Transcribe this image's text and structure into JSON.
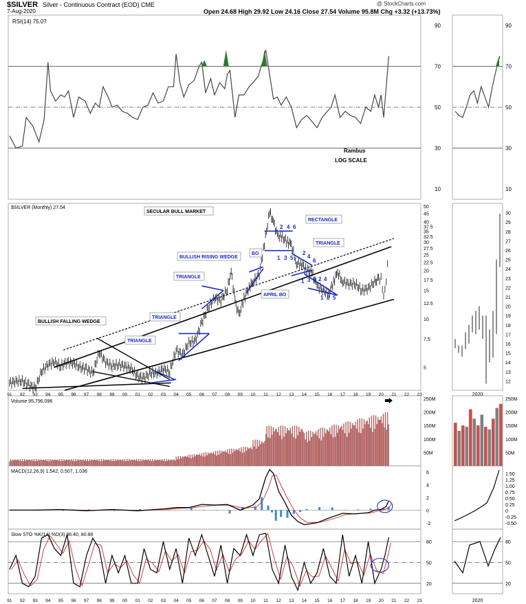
{
  "header": {
    "symbol": "$SILVER",
    "subtitle": "Silver - Continuous Contract (EOD) CME",
    "date": "7-Aug-2020",
    "quote": "Open 24.68  High 29.92  Low 24.16  Close 27.54  Volume 95.8M  Chg +3.32 (+13.73%)",
    "source": "@ StockCharts.com"
  },
  "colors": {
    "line": "#444444",
    "signal": "#d23c3c",
    "hist": "#3c8cc8",
    "vol_up": "#c85050",
    "vol_dn": "#808080",
    "annot": "#1a28c8",
    "green": "#2d7a2d"
  },
  "chart_data": [
    {
      "id": "rsi",
      "type": "line",
      "legend": "RSI(14) 75.07",
      "ylim": [
        5,
        95
      ],
      "ticks": [
        90,
        70,
        50,
        30,
        10
      ],
      "levels": [
        70,
        50,
        30
      ],
      "x": [
        1991.0,
        1991.5,
        1992.0,
        1992.3,
        1992.8,
        1993.3,
        1993.7,
        1994.0,
        1994.2,
        1994.6,
        1995.0,
        1995.3,
        1995.6,
        1996.0,
        1996.4,
        1996.9,
        1997.3,
        1997.7,
        1998.0,
        1998.3,
        1998.7,
        1999.0,
        1999.4,
        1999.8,
        2000.2,
        2000.6,
        2001.0,
        2001.4,
        2001.8,
        2002.2,
        2002.6,
        2003.0,
        2003.4,
        2003.8,
        2004.0,
        2004.3,
        2004.6,
        2005.0,
        2005.4,
        2005.8,
        2006.0,
        2006.3,
        2006.7,
        2007.0,
        2007.4,
        2007.8,
        2008.0,
        2008.2,
        2008.6,
        2008.9,
        2009.3,
        2009.7,
        2010.0,
        2010.4,
        2010.8,
        2011.0,
        2011.3,
        2011.6,
        2011.9,
        2012.2,
        2012.6,
        2013.0,
        2013.4,
        2013.8,
        2014.2,
        2014.6,
        2015.0,
        2015.4,
        2015.8,
        2016.1,
        2016.4,
        2016.8,
        2017.2,
        2017.6,
        2018.0,
        2018.4,
        2018.8,
        2019.2,
        2019.5,
        2019.8,
        2020.0,
        2020.2,
        2020.4,
        2020.6
      ],
      "y": [
        36,
        30,
        31,
        45,
        41,
        33,
        44,
        72,
        58,
        53,
        56,
        55,
        58,
        45,
        55,
        53,
        47,
        52,
        50,
        60,
        55,
        50,
        51,
        48,
        47,
        45,
        44,
        50,
        51,
        57,
        52,
        53,
        60,
        60,
        76,
        62,
        55,
        61,
        63,
        70,
        72,
        57,
        64,
        56,
        62,
        59,
        66,
        68,
        45,
        56,
        56,
        60,
        62,
        65,
        73,
        78,
        66,
        54,
        55,
        51,
        55,
        50,
        40,
        44,
        46,
        43,
        40,
        45,
        48,
        50,
        56,
        45,
        48,
        46,
        45,
        42,
        50,
        48,
        56,
        50,
        56,
        45,
        60,
        75
      ]
    },
    {
      "id": "price",
      "type": "line",
      "scale": "log",
      "legend": "$SILVER (Monthly) 27.54",
      "ylim": [
        3.6,
        52
      ],
      "ticks": [
        50,
        45,
        40,
        37.5,
        35,
        32.5,
        30,
        27.5,
        25,
        22.5,
        20,
        17.5,
        15,
        12.5,
        10,
        7.5,
        5
      ],
      "x": [
        1991.0,
        1991.5,
        1992.0,
        1992.5,
        1993.0,
        1993.5,
        1994.0,
        1994.5,
        1995.0,
        1995.5,
        1996.0,
        1996.5,
        1997.0,
        1997.5,
        1998.0,
        1998.5,
        1999.0,
        1999.5,
        2000.0,
        2000.5,
        2001.0,
        2001.5,
        2002.0,
        2002.5,
        2003.0,
        2003.5,
        2004.0,
        2004.5,
        2005.0,
        2005.5,
        2006.0,
        2006.5,
        2007.0,
        2007.5,
        2008.0,
        2008.3,
        2008.6,
        2008.9,
        2009.3,
        2009.7,
        2010.0,
        2010.5,
        2010.9,
        2011.3,
        2011.6,
        2011.9,
        2012.3,
        2012.7,
        2013.0,
        2013.4,
        2013.8,
        2014.2,
        2014.6,
        2015.0,
        2015.5,
        2015.9,
        2016.3,
        2016.6,
        2017.0,
        2017.5,
        2018.0,
        2018.5,
        2019.0,
        2019.5,
        2019.8,
        2020.0,
        2020.2,
        2020.4,
        2020.6
      ],
      "y": [
        4.0,
        4.1,
        4.1,
        3.9,
        3.7,
        4.7,
        5.2,
        5.4,
        5.1,
        5.4,
        5.3,
        5.0,
        4.9,
        4.6,
        6.2,
        5.4,
        5.1,
        5.2,
        5.1,
        4.9,
        4.4,
        4.3,
        4.6,
        4.6,
        4.9,
        4.7,
        6.4,
        6.0,
        7.1,
        7.3,
        9.5,
        11.7,
        13.5,
        13.0,
        15.3,
        19.8,
        13.0,
        10.5,
        13.4,
        15.8,
        17.0,
        19.0,
        29.5,
        46.0,
        40.0,
        33.0,
        32.0,
        30.0,
        29.0,
        22.0,
        22.0,
        20.0,
        19.5,
        16.0,
        15.0,
        14.2,
        17.0,
        19.5,
        17.0,
        16.5,
        16.5,
        15.0,
        15.5,
        17.0,
        17.5,
        18.0,
        14.0,
        17.5,
        27.5
      ],
      "annotations": [
        "BULLISH FALLING WEDGE",
        "SECULAR BULL MARKET",
        "TRIANGLE",
        "TRIANGLE",
        "TRIANGLE",
        "BULLISH RISING WEDGE",
        "BO",
        "APRIL BO",
        "RECTANGLE",
        "TRIANGLE",
        "Rambus",
        "LOG SCALE"
      ],
      "wave_labels": [
        "2",
        "4",
        "6",
        "1",
        "3",
        "5",
        "2",
        "4",
        "6",
        "1",
        "3",
        "5",
        "2",
        "4",
        "1",
        "3",
        "5"
      ]
    },
    {
      "id": "volume",
      "type": "bar",
      "legend": "Volume 95,796,096",
      "ylim": [
        0,
        260
      ],
      "ticks": [
        "250M",
        "200M",
        "150M",
        "100M",
        "50M"
      ]
    },
    {
      "id": "macd",
      "type": "line",
      "legend": "MACD(12,26,9) 1.542, 0.507, 1.036",
      "ylim": [
        -3,
        7
      ],
      "ticks": [
        6,
        4,
        2,
        0,
        -2
      ],
      "x": [
        1991,
        1993,
        1995,
        1997,
        1999,
        2001,
        2003,
        2004,
        2005,
        2006,
        2007,
        2008,
        2009,
        2010,
        2010.5,
        2011.0,
        2011.3,
        2011.6,
        2012,
        2012.5,
        2013,
        2013.5,
        2014,
        2015,
        2016,
        2017,
        2018,
        2019,
        2019.5,
        2020,
        2020.4,
        2020.6
      ],
      "y": [
        0,
        0,
        0.1,
        -0.1,
        0.1,
        -0.1,
        0.2,
        0.4,
        0.4,
        0.9,
        0.8,
        0.9,
        0,
        0.8,
        1.8,
        5.2,
        6.4,
        5.8,
        3.0,
        1.2,
        -0.8,
        -1.8,
        -2.3,
        -2.0,
        -1.2,
        -0.5,
        -0.6,
        -0.4,
        0,
        0.1,
        0.6,
        1.5
      ]
    },
    {
      "id": "sto",
      "type": "line",
      "legend": "Slow STO %K(14) %D(3) 86.40, 80.88",
      "ylim": [
        5,
        98
      ],
      "ticks": [
        80,
        50,
        20
      ],
      "x": [
        1991.0,
        1991.5,
        1992.0,
        1992.5,
        1993.0,
        1993.5,
        1994.0,
        1994.5,
        1995.0,
        1995.5,
        1996.0,
        1996.5,
        1997.0,
        1997.5,
        1998.0,
        1998.5,
        1999.0,
        1999.5,
        2000.0,
        2000.5,
        2001.0,
        2001.5,
        2002.0,
        2002.5,
        2003.0,
        2003.5,
        2004.0,
        2004.5,
        2005.0,
        2005.5,
        2006.0,
        2006.5,
        2007.0,
        2007.5,
        2008.0,
        2008.5,
        2009.0,
        2009.5,
        2010.0,
        2010.5,
        2011.0,
        2011.5,
        2012.0,
        2012.5,
        2013.0,
        2013.5,
        2014.0,
        2014.5,
        2015.0,
        2015.5,
        2016.0,
        2016.5,
        2017.0,
        2017.5,
        2018.0,
        2018.5,
        2019.0,
        2019.5,
        2020.0,
        2020.3,
        2020.6
      ],
      "y": [
        40,
        60,
        20,
        15,
        30,
        85,
        90,
        70,
        60,
        90,
        20,
        15,
        60,
        85,
        70,
        20,
        60,
        35,
        60,
        20,
        20,
        70,
        40,
        35,
        80,
        40,
        70,
        20,
        85,
        60,
        90,
        60,
        30,
        75,
        20,
        70,
        60,
        90,
        60,
        90,
        92,
        40,
        20,
        75,
        30,
        10,
        50,
        20,
        35,
        70,
        30,
        20,
        90,
        30,
        60,
        20,
        80,
        20,
        40,
        60,
        86
      ]
    },
    {
      "id": "inset_price",
      "type": "line",
      "legend": "2020",
      "ylim": [
        11,
        31
      ],
      "ticks": [
        30,
        29,
        28,
        27,
        26,
        25,
        24,
        23,
        22,
        21,
        20,
        19,
        18,
        17,
        16,
        15,
        14,
        13,
        12
      ]
    }
  ],
  "x_axis": {
    "labels": [
      "91",
      "92",
      "93",
      "94",
      "95",
      "96",
      "97",
      "98",
      "99",
      "00",
      "01",
      "02",
      "03",
      "04",
      "05",
      "06",
      "07",
      "08",
      "09",
      "10",
      "11",
      "12",
      "13",
      "14",
      "15",
      "16",
      "17",
      "18",
      "19",
      "20",
      "21",
      "22",
      "23"
    ],
    "inset_label": "2020"
  }
}
